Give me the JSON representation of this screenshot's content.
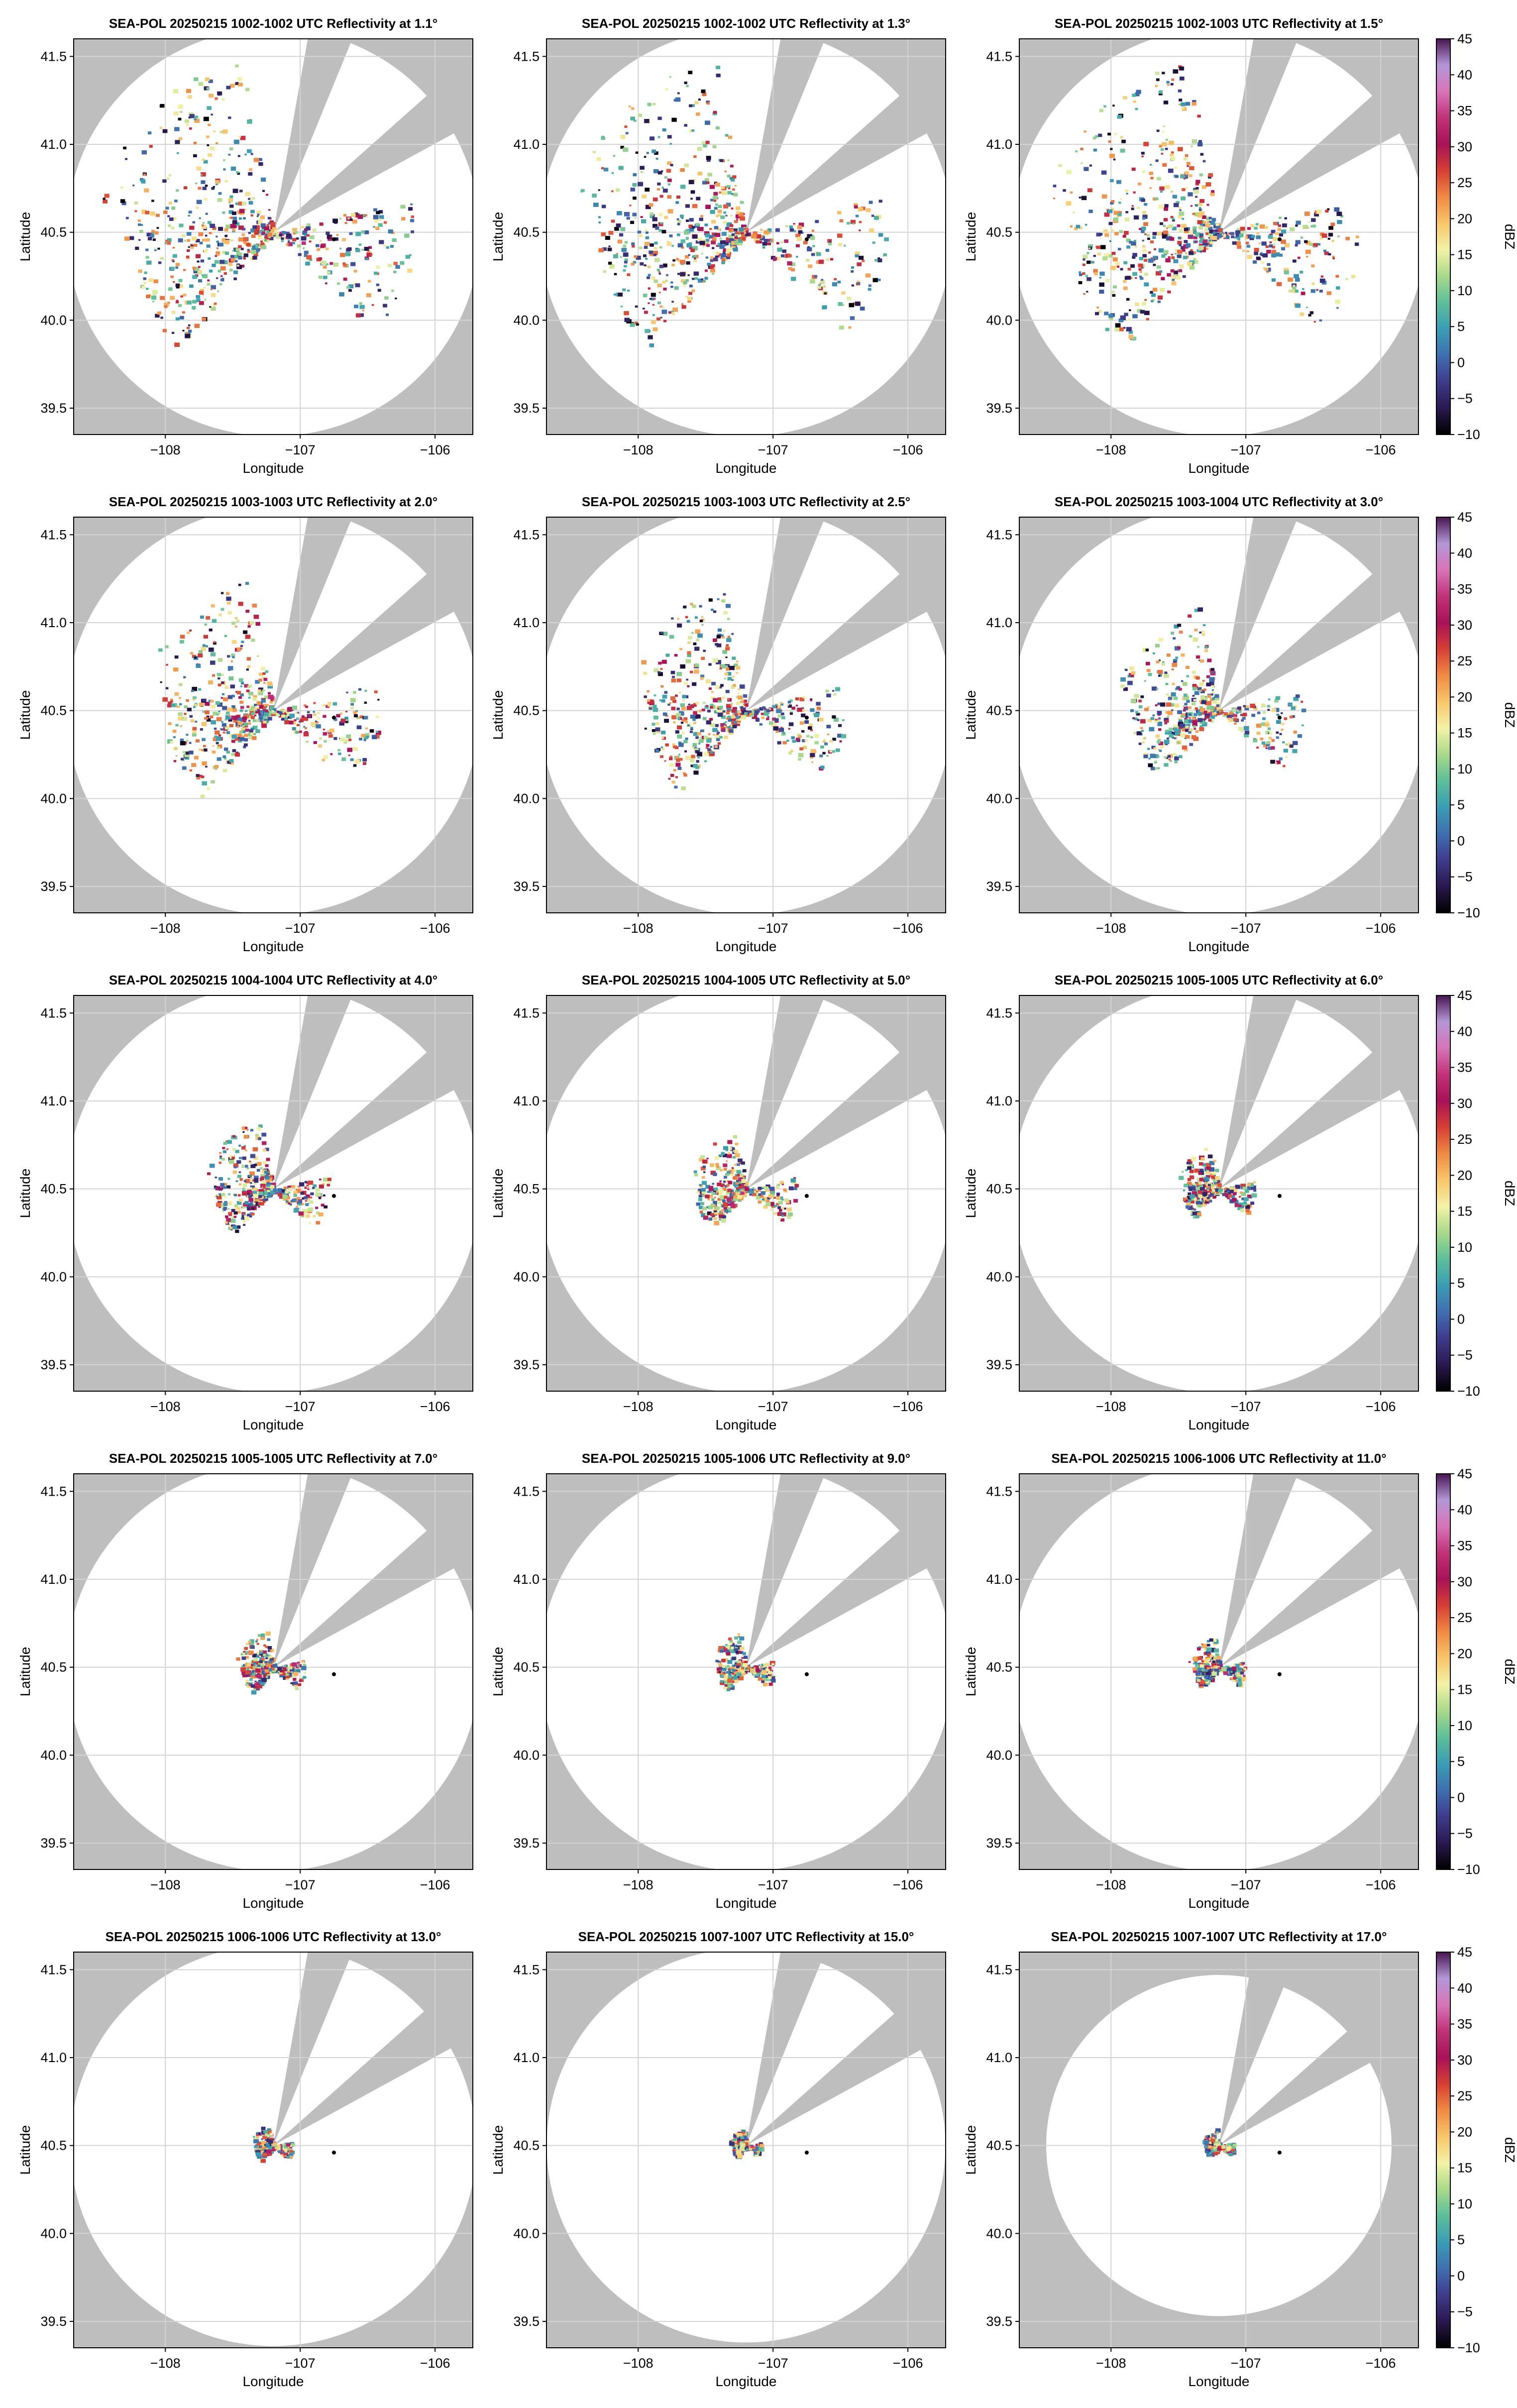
{
  "figure": {
    "panels": [
      {
        "title": "SEA-POL 20250215 1002-1002 UTC Reflectivity at 1.1°"
      },
      {
        "title": "SEA-POL 20250215 1002-1002 UTC Reflectivity at 1.3°"
      },
      {
        "title": "SEA-POL 20250215 1002-1003 UTC Reflectivity at 1.5°"
      },
      {
        "title": "SEA-POL 20250215 1003-1003 UTC Reflectivity at 2.0°"
      },
      {
        "title": "SEA-POL 20250215 1003-1003 UTC Reflectivity at 2.5°"
      },
      {
        "title": "SEA-POL 20250215 1003-1004 UTC Reflectivity at 3.0°"
      },
      {
        "title": "SEA-POL 20250215 1004-1004 UTC Reflectivity at 4.0°"
      },
      {
        "title": "SEA-POL 20250215 1004-1005 UTC Reflectivity at 5.0°"
      },
      {
        "title": "SEA-POL 20250215 1005-1005 UTC Reflectivity at 6.0°"
      },
      {
        "title": "SEA-POL 20250215 1005-1005 UTC Reflectivity at 7.0°"
      },
      {
        "title": "SEA-POL 20250215 1005-1006 UTC Reflectivity at 9.0°"
      },
      {
        "title": "SEA-POL 20250215 1006-1006 UTC Reflectivity at 11.0°"
      },
      {
        "title": "SEA-POL 20250215 1006-1006 UTC Reflectivity at 13.0°"
      },
      {
        "title": "SEA-POL 20250215 1007-1007 UTC Reflectivity at 15.0°"
      },
      {
        "title": "SEA-POL 20250215 1007-1007 UTC Reflectivity at 17.0°"
      }
    ]
  },
  "colors": {
    "background": "#ffffff",
    "panel_background": "#bebebe",
    "coverage": "#ffffff",
    "grid": "#d4d4d4",
    "marker": "#000000",
    "colormap_stops": [
      "#000000",
      "#2a1850",
      "#3f3b8c",
      "#3f6fb0",
      "#3a9db4",
      "#5cbf9a",
      "#a9d98a",
      "#f3f2a6",
      "#f9c66a",
      "#f08a44",
      "#d63f33",
      "#a81258",
      "#c0327a",
      "#d874b8",
      "#b497d8",
      "#4a1452"
    ]
  },
  "chart_data": {
    "type": "heatmap",
    "layout": {
      "rows": 5,
      "cols": 3
    },
    "xlabel": "Longitude",
    "ylabel": "Latitude",
    "xlim": [
      -108.68,
      -105.72
    ],
    "ylim": [
      39.35,
      41.6
    ],
    "xticks": [
      -108,
      -107,
      -106
    ],
    "xtick_labels": [
      "−108",
      "−107",
      "−106"
    ],
    "yticks": [
      39.5,
      40.0,
      40.5,
      41.0,
      41.5
    ],
    "ytick_labels": [
      "39.5",
      "40.0",
      "40.5",
      "41.0",
      "41.5"
    ],
    "grid": true,
    "radar_location": {
      "lon": -107.2,
      "lat": 40.5
    },
    "marker_location": {
      "lon": -106.75,
      "lat": 40.46
    },
    "colorbar": {
      "label": "dBZ",
      "range": [
        -10,
        45
      ],
      "ticks": [
        -10,
        -5,
        0,
        5,
        10,
        15,
        20,
        25,
        30,
        35,
        40,
        45
      ],
      "tick_labels": [
        "−10",
        "−5",
        "0",
        "5",
        "10",
        "15",
        "20",
        "25",
        "30",
        "35",
        "40",
        "45"
      ],
      "shown_on_column": 3
    },
    "blocked_sectors_deg": [
      [
        10,
        22
      ],
      [
        48,
        61
      ]
    ],
    "elevations_deg": [
      1.1,
      1.3,
      1.5,
      2.0,
      2.5,
      3.0,
      4.0,
      5.0,
      6.0,
      7.0,
      9.0,
      11.0,
      13.0,
      15.0,
      17.0
    ],
    "echo_extent_deg": [
      1.0,
      1.0,
      1.0,
      0.75,
      0.7,
      0.6,
      0.4,
      0.35,
      0.25,
      0.22,
      0.2,
      0.18,
      0.13,
      0.1,
      0.1
    ],
    "coverage_radius_lat_deg": [
      1.16,
      1.16,
      1.16,
      1.16,
      1.16,
      1.16,
      1.16,
      1.16,
      1.16,
      1.16,
      1.16,
      1.16,
      1.14,
      1.12,
      0.97
    ]
  }
}
